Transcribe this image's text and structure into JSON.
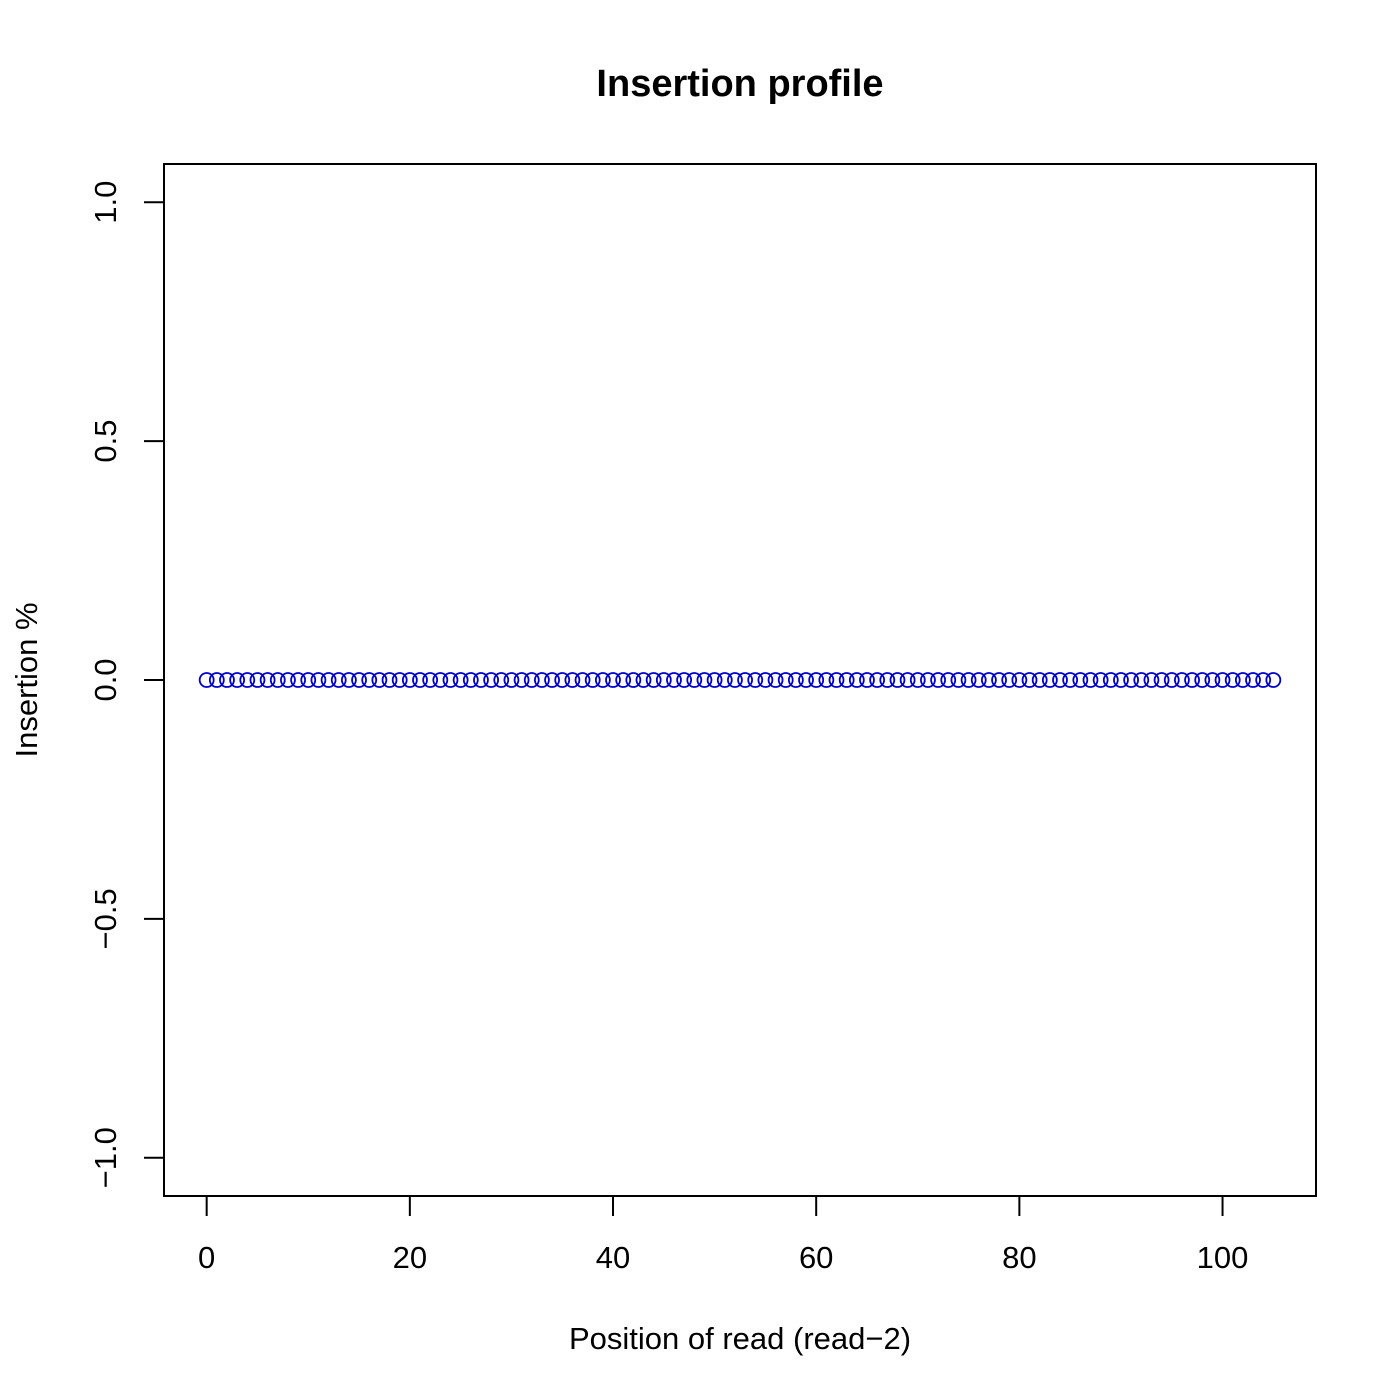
{
  "chart_data": {
    "type": "scatter",
    "title": "Insertion profile",
    "xlabel": "Position of read (read−2)",
    "ylabel": "Insertion %",
    "xlim": [
      -4.2,
      109.2
    ],
    "ylim": [
      -1.08,
      1.08
    ],
    "x_ticks": [
      0,
      20,
      40,
      60,
      80,
      100
    ],
    "x_tick_labels": [
      "0",
      "20",
      "40",
      "60",
      "80",
      "100"
    ],
    "y_ticks": [
      -1.0,
      -0.5,
      0.0,
      0.5,
      1.0
    ],
    "y_tick_labels": [
      "−1.0",
      "−0.5",
      "0.0",
      "0.5",
      "1.0"
    ],
    "grid": false,
    "marker": "open-circle",
    "point_color": "#0000cc",
    "series": [
      {
        "x": [
          0,
          1,
          2,
          3,
          4,
          5,
          6,
          7,
          8,
          9,
          10,
          11,
          12,
          13,
          14,
          15,
          16,
          17,
          18,
          19,
          20,
          21,
          22,
          23,
          24,
          25,
          26,
          27,
          28,
          29,
          30,
          31,
          32,
          33,
          34,
          35,
          36,
          37,
          38,
          39,
          40,
          41,
          42,
          43,
          44,
          45,
          46,
          47,
          48,
          49,
          50,
          51,
          52,
          53,
          54,
          55,
          56,
          57,
          58,
          59,
          60,
          61,
          62,
          63,
          64,
          65,
          66,
          67,
          68,
          69,
          70,
          71,
          72,
          73,
          74,
          75,
          76,
          77,
          78,
          79,
          80,
          81,
          82,
          83,
          84,
          85,
          86,
          87,
          88,
          89,
          90,
          91,
          92,
          93,
          94,
          95,
          96,
          97,
          98,
          99,
          100,
          101,
          102,
          103,
          104,
          105
        ],
        "y": [
          0,
          0,
          0,
          0,
          0,
          0,
          0,
          0,
          0,
          0,
          0,
          0,
          0,
          0,
          0,
          0,
          0,
          0,
          0,
          0,
          0,
          0,
          0,
          0,
          0,
          0,
          0,
          0,
          0,
          0,
          0,
          0,
          0,
          0,
          0,
          0,
          0,
          0,
          0,
          0,
          0,
          0,
          0,
          0,
          0,
          0,
          0,
          0,
          0,
          0,
          0,
          0,
          0,
          0,
          0,
          0,
          0,
          0,
          0,
          0,
          0,
          0,
          0,
          0,
          0,
          0,
          0,
          0,
          0,
          0,
          0,
          0,
          0,
          0,
          0,
          0,
          0,
          0,
          0,
          0,
          0,
          0,
          0,
          0,
          0,
          0,
          0,
          0,
          0,
          0,
          0,
          0,
          0,
          0,
          0,
          0,
          0,
          0,
          0,
          0,
          0,
          0,
          0,
          0,
          0,
          0
        ]
      }
    ]
  }
}
